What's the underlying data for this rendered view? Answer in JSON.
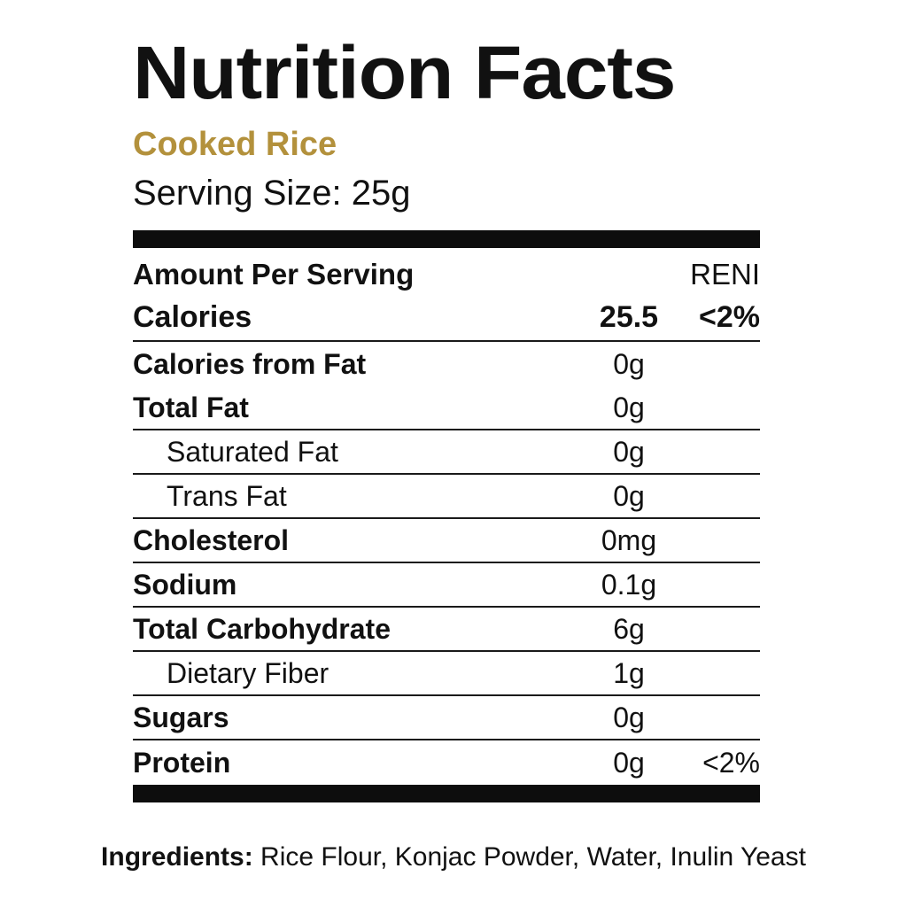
{
  "colors": {
    "accent_gold": "#b3913c",
    "text_black": "#111111",
    "background": "#ffffff"
  },
  "header": {
    "title": "Nutrition Facts",
    "subtitle": "Cooked Rice",
    "serving_size": "Serving Size: 25g"
  },
  "table": {
    "header_row": {
      "label": "Amount Per Serving",
      "reni_header": "RENI"
    },
    "calories_row": {
      "label": "Calories",
      "value": "25.5",
      "reni": "<2%"
    },
    "rows": [
      {
        "label": "Calories from Fat",
        "value": "0g"
      },
      {
        "label": "Total Fat",
        "value": "0g"
      },
      {
        "label": "Saturated Fat",
        "value": "0g"
      },
      {
        "label": "Trans Fat",
        "value": "0g"
      },
      {
        "label": "Cholesterol",
        "value": "0mg"
      },
      {
        "label": "Sodium",
        "value": "0.1g"
      },
      {
        "label": "Total Carbohydrate",
        "value": "6g"
      },
      {
        "label": "Dietary Fiber",
        "value": "1g"
      },
      {
        "label": "Sugars",
        "value": "0g"
      },
      {
        "label": "Protein",
        "value": "0g",
        "reni": "<2%"
      }
    ]
  },
  "ingredients": {
    "label": "Ingredients:",
    "text": " Rice Flour, Konjac Powder, Water, Inulin Yeast"
  }
}
